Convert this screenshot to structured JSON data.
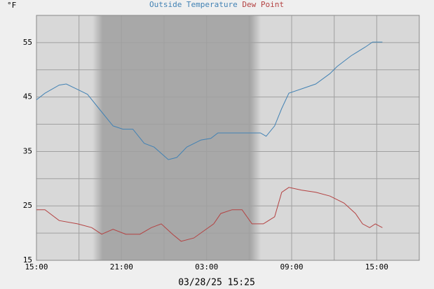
{
  "chart_data": {
    "type": "line",
    "y_unit": "°F",
    "timestamp": "03/28/25 15:25",
    "xlim": [
      0,
      27
    ],
    "xticks": [
      {
        "value": 0,
        "label": "15:00"
      },
      {
        "value": 6,
        "label": "21:00"
      },
      {
        "value": 12,
        "label": "03:00"
      },
      {
        "value": 18,
        "label": "09:00"
      },
      {
        "value": 24,
        "label": "15:00"
      }
    ],
    "minor_xticks": [
      3,
      9,
      15,
      21
    ],
    "ylim": [
      15,
      60
    ],
    "yticks": [
      15,
      25,
      35,
      45,
      55
    ],
    "minor_yticks": [
      20,
      30,
      40,
      50,
      60
    ],
    "grid": true,
    "series": [
      {
        "name": "Outside Temperature",
        "color": "#4282b4",
        "x": [
          0,
          0.6,
          1.6,
          2.1,
          2.9,
          3.6,
          4.4,
          5.4,
          6.1,
          6.8,
          7.6,
          8.3,
          9.3,
          9.9,
          10.6,
          11.6,
          12.3,
          12.8,
          13.8,
          14.8,
          15.8,
          16.2,
          16.8,
          17.3,
          17.8,
          18.7,
          19.7,
          20.7,
          21.2,
          22.2,
          23.2,
          23.7,
          24.4
        ],
        "values": [
          44.5,
          45.7,
          47.2,
          47.4,
          46.4,
          45.5,
          42.9,
          39.7,
          39.1,
          39.1,
          36.5,
          35.8,
          33.5,
          33.9,
          35.8,
          37.1,
          37.4,
          38.4,
          38.4,
          38.4,
          38.4,
          37.8,
          39.7,
          42.9,
          45.7,
          46.5,
          47.4,
          49.3,
          50.6,
          52.6,
          54.2,
          55.1,
          55.1
        ]
      },
      {
        "name": "Dew Point",
        "color": "#b44242",
        "x": [
          0,
          0.6,
          1.6,
          2.9,
          3.9,
          4.6,
          5.4,
          6.3,
          7.3,
          8.1,
          8.8,
          9.6,
          10.2,
          11.1,
          11.8,
          12.5,
          13,
          13.8,
          14.5,
          15.2,
          16,
          16.8,
          17.3,
          17.8,
          18.7,
          19.7,
          20.7,
          21.7,
          22.5,
          23,
          23.5,
          23.9,
          24.4
        ],
        "values": [
          24.3,
          24.3,
          22.3,
          21.7,
          21,
          19.8,
          20.7,
          19.8,
          19.8,
          21,
          21.7,
          19.8,
          18.5,
          19.1,
          20.4,
          21.7,
          23.6,
          24.3,
          24.3,
          21.7,
          21.7,
          23,
          27.5,
          28.4,
          27.9,
          27.5,
          26.8,
          25.5,
          23.6,
          21.7,
          21,
          21.7,
          21
        ]
      }
    ]
  }
}
